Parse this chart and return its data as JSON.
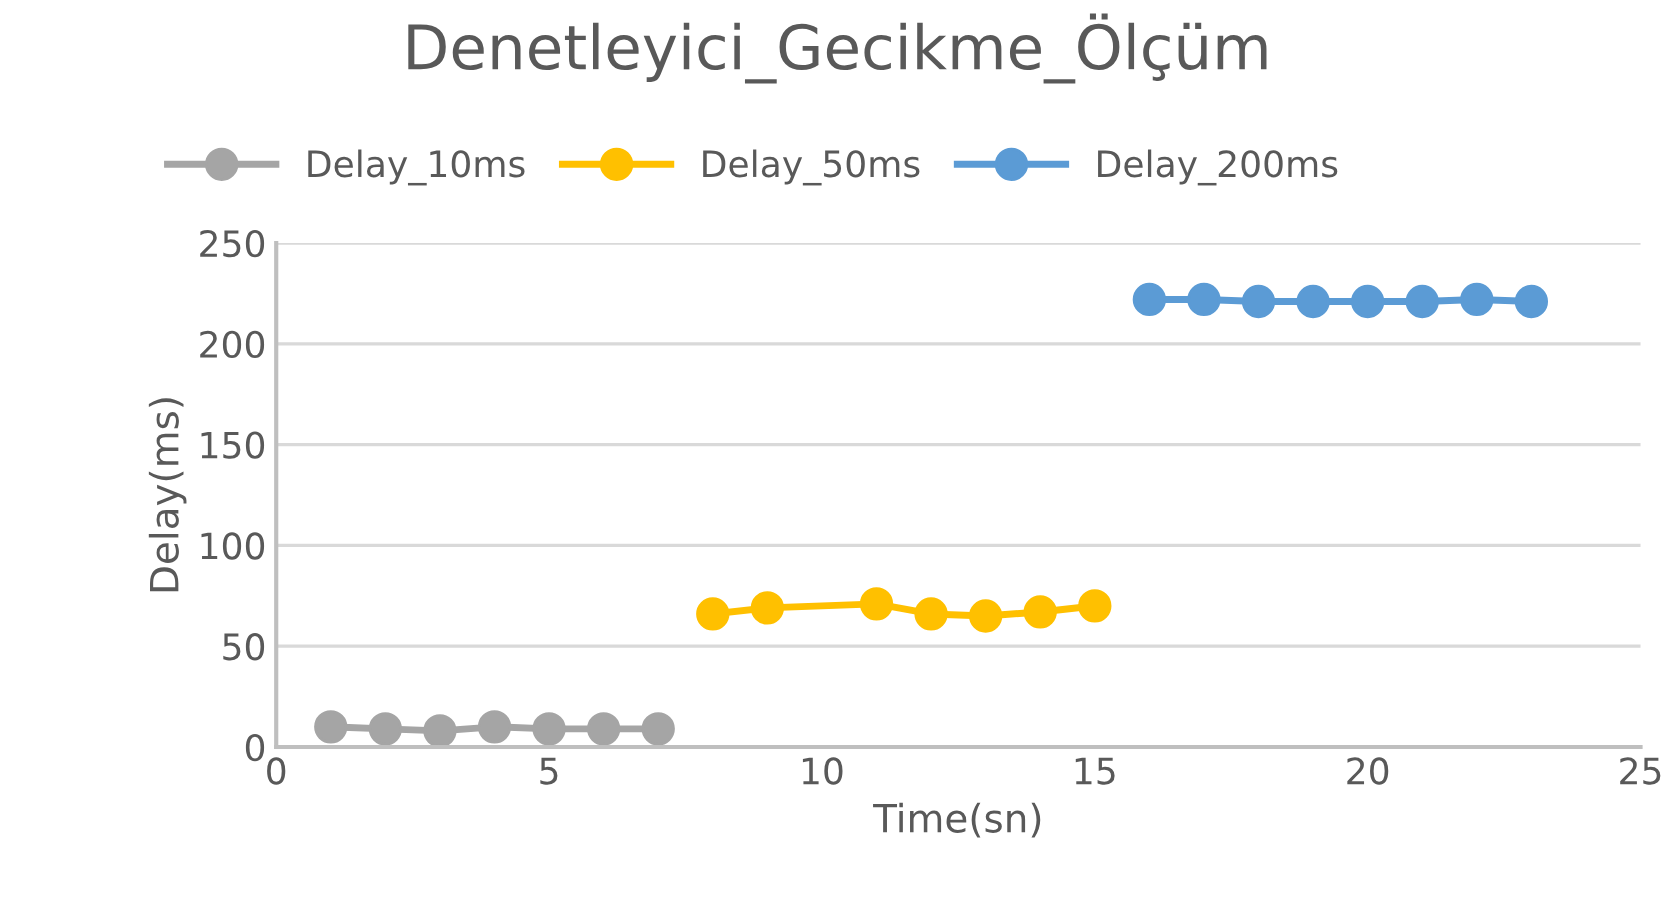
{
  "chart_data": {
    "type": "line",
    "title": "Denetleyici_Gecikme_Ölçüm",
    "xlabel": "Time(sn)",
    "ylabel": "Delay(ms)",
    "xlim": [
      0,
      25
    ],
    "xticks": [
      0,
      5,
      10,
      15,
      20,
      25
    ],
    "ylim": [
      0,
      250
    ],
    "yticks": [
      0,
      50,
      100,
      150,
      200,
      250
    ],
    "grid": "y",
    "legend": "top",
    "marker": "circle",
    "series": [
      {
        "name": "Delay_10ms",
        "color": "#a5a5a5",
        "x": [
          1,
          2,
          3,
          4,
          5,
          6,
          7
        ],
        "values": [
          10,
          9,
          8,
          10,
          9,
          9,
          9
        ]
      },
      {
        "name": "Delay_50ms",
        "color": "#ffc000",
        "x": [
          8,
          9,
          11,
          12,
          13,
          14,
          15
        ],
        "values": [
          66,
          69,
          71,
          66,
          65,
          67,
          70
        ]
      },
      {
        "name": "Delay_200ms",
        "color": "#5b9bd5",
        "x": [
          16,
          17,
          18,
          19,
          20,
          21,
          22,
          23
        ],
        "values": [
          222,
          222,
          221,
          221,
          221,
          221,
          222,
          221
        ]
      }
    ]
  }
}
